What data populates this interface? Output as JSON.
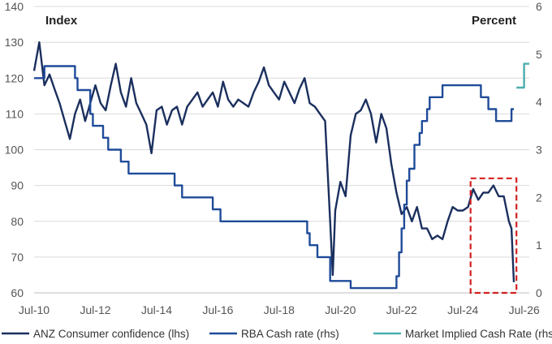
{
  "chart_data": {
    "type": "line",
    "left_axis": {
      "label": "Index",
      "min": 60,
      "max": 140,
      "ticks": [
        "60",
        "70",
        "80",
        "90",
        "100",
        "110",
        "120",
        "130",
        "140"
      ]
    },
    "right_axis": {
      "label": "Percent",
      "min": 0,
      "max": 6,
      "ticks": [
        "0",
        "1",
        "2",
        "3",
        "4",
        "5",
        "6"
      ]
    },
    "x_axis": {
      "start": "2010-07",
      "end": "2026-09",
      "ticks": [
        "Jul-10",
        "Jul-12",
        "Jul-14",
        "Jul-16",
        "Jul-18",
        "Jul-20",
        "Jul-22",
        "Jul-24",
        "Jul-26"
      ]
    },
    "grid": "horizontal",
    "legend": "bottom",
    "colors": {
      "confidence": "#1b2f5e",
      "cash_rate": "#1f4b99",
      "implied": "#4aaeae",
      "highlight": "#d42020",
      "grid": "#d9d9d9"
    },
    "highlight_box": {
      "x_from": "2024-10",
      "x_to": "2026-04",
      "y_from": 60,
      "y_to": 92
    },
    "series": [
      {
        "name": "ANZ Consumer confidence (lhs)",
        "axis": "left",
        "points": [
          [
            "2010-07",
            122
          ],
          [
            "2010-09",
            130
          ],
          [
            "2010-11",
            118
          ],
          [
            "2011-01",
            121
          ],
          [
            "2011-03",
            117
          ],
          [
            "2011-05",
            113
          ],
          [
            "2011-07",
            108
          ],
          [
            "2011-09",
            103
          ],
          [
            "2011-11",
            110
          ],
          [
            "2012-01",
            114
          ],
          [
            "2012-03",
            108
          ],
          [
            "2012-05",
            113
          ],
          [
            "2012-07",
            118
          ],
          [
            "2012-09",
            113
          ],
          [
            "2012-11",
            111
          ],
          [
            "2013-01",
            118
          ],
          [
            "2013-03",
            124
          ],
          [
            "2013-05",
            116
          ],
          [
            "2013-07",
            112
          ],
          [
            "2013-09",
            120
          ],
          [
            "2013-11",
            113
          ],
          [
            "2014-01",
            110
          ],
          [
            "2014-03",
            107
          ],
          [
            "2014-05",
            99
          ],
          [
            "2014-07",
            111
          ],
          [
            "2014-09",
            112
          ],
          [
            "2014-11",
            107
          ],
          [
            "2015-01",
            111
          ],
          [
            "2015-03",
            112
          ],
          [
            "2015-05",
            107
          ],
          [
            "2015-07",
            112
          ],
          [
            "2015-09",
            114
          ],
          [
            "2015-11",
            116
          ],
          [
            "2016-01",
            112
          ],
          [
            "2016-03",
            114
          ],
          [
            "2016-05",
            116
          ],
          [
            "2016-07",
            112
          ],
          [
            "2016-09",
            119
          ],
          [
            "2016-11",
            114
          ],
          [
            "2017-01",
            112
          ],
          [
            "2017-03",
            114
          ],
          [
            "2017-05",
            113
          ],
          [
            "2017-07",
            112
          ],
          [
            "2017-09",
            116
          ],
          [
            "2017-11",
            119
          ],
          [
            "2018-01",
            123
          ],
          [
            "2018-03",
            118
          ],
          [
            "2018-05",
            116
          ],
          [
            "2018-07",
            114
          ],
          [
            "2018-09",
            119
          ],
          [
            "2018-11",
            116
          ],
          [
            "2019-01",
            113
          ],
          [
            "2019-03",
            117
          ],
          [
            "2019-05",
            120
          ],
          [
            "2019-07",
            113
          ],
          [
            "2019-09",
            112
          ],
          [
            "2019-11",
            110
          ],
          [
            "2020-01",
            108
          ],
          [
            "2020-03",
            80
          ],
          [
            "2020-04",
            65
          ],
          [
            "2020-05",
            83
          ],
          [
            "2020-07",
            91
          ],
          [
            "2020-09",
            87
          ],
          [
            "2020-11",
            104
          ],
          [
            "2021-01",
            110
          ],
          [
            "2021-03",
            111
          ],
          [
            "2021-05",
            114
          ],
          [
            "2021-07",
            110
          ],
          [
            "2021-09",
            102
          ],
          [
            "2021-11",
            110
          ],
          [
            "2022-01",
            106
          ],
          [
            "2022-03",
            96
          ],
          [
            "2022-05",
            88
          ],
          [
            "2022-07",
            82
          ],
          [
            "2022-09",
            84
          ],
          [
            "2022-11",
            80
          ],
          [
            "2023-01",
            84
          ],
          [
            "2023-03",
            78
          ],
          [
            "2023-05",
            78
          ],
          [
            "2023-07",
            75
          ],
          [
            "2023-09",
            76
          ],
          [
            "2023-11",
            75
          ],
          [
            "2024-01",
            80
          ],
          [
            "2024-03",
            84
          ],
          [
            "2024-05",
            83
          ],
          [
            "2024-07",
            83
          ],
          [
            "2024-09",
            84
          ],
          [
            "2024-11",
            89
          ],
          [
            "2025-01",
            86
          ],
          [
            "2025-03",
            88
          ],
          [
            "2025-05",
            88
          ],
          [
            "2025-07",
            90
          ],
          [
            "2025-09",
            87
          ],
          [
            "2025-11",
            87
          ],
          [
            "2026-01",
            80
          ],
          [
            "2026-02",
            78
          ],
          [
            "2026-03",
            63
          ]
        ]
      },
      {
        "name": "RBA Cash rate (rhs)",
        "axis": "right",
        "points": [
          [
            "2010-07",
            4.5
          ],
          [
            "2010-11",
            4.75
          ],
          [
            "2011-11",
            4.5
          ],
          [
            "2011-12",
            4.25
          ],
          [
            "2012-05",
            3.75
          ],
          [
            "2012-06",
            3.5
          ],
          [
            "2012-10",
            3.25
          ],
          [
            "2012-12",
            3.0
          ],
          [
            "2013-05",
            2.75
          ],
          [
            "2013-08",
            2.5
          ],
          [
            "2015-02",
            2.25
          ],
          [
            "2015-05",
            2.0
          ],
          [
            "2016-05",
            1.75
          ],
          [
            "2016-08",
            1.5
          ],
          [
            "2019-06",
            1.25
          ],
          [
            "2019-07",
            1.0
          ],
          [
            "2019-10",
            0.75
          ],
          [
            "2020-03",
            0.25
          ],
          [
            "2020-11",
            0.1
          ],
          [
            "2022-05",
            0.35
          ],
          [
            "2022-06",
            0.85
          ],
          [
            "2022-07",
            1.35
          ],
          [
            "2022-08",
            1.85
          ],
          [
            "2022-09",
            2.35
          ],
          [
            "2022-10",
            2.6
          ],
          [
            "2022-12",
            3.1
          ],
          [
            "2023-02",
            3.35
          ],
          [
            "2023-03",
            3.6
          ],
          [
            "2023-05",
            3.85
          ],
          [
            "2023-06",
            4.1
          ],
          [
            "2023-11",
            4.35
          ],
          [
            "2025-02",
            4.1
          ],
          [
            "2025-05",
            3.85
          ],
          [
            "2025-08",
            3.6
          ],
          [
            "2026-02",
            3.85
          ],
          [
            "2026-03",
            3.85
          ]
        ]
      },
      {
        "name": "Market Implied Cash Rate (rhs)",
        "axis": "right",
        "points": [
          [
            "2026-04",
            4.3
          ],
          [
            "2026-06",
            4.3
          ],
          [
            "2026-07",
            4.8
          ],
          [
            "2026-09",
            4.8
          ]
        ]
      }
    ]
  }
}
